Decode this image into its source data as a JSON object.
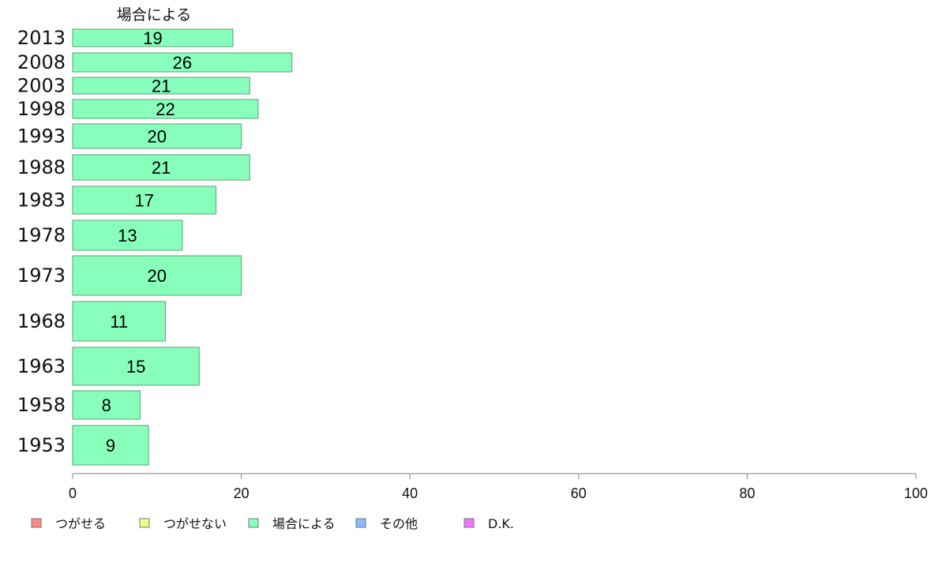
{
  "chart_data": {
    "type": "bar",
    "orientation": "horizontal",
    "categories": [
      "2013",
      "2008",
      "2003",
      "1998",
      "1993",
      "1988",
      "1983",
      "1978",
      "1973",
      "1968",
      "1963",
      "1958",
      "1953"
    ],
    "series": [
      {
        "name": "場合による",
        "color": "#88ffbb",
        "values": [
          19,
          26,
          21,
          22,
          20,
          21,
          17,
          13,
          20,
          11,
          15,
          8,
          9
        ],
        "data_labels": [
          "19",
          "26",
          "21",
          "22",
          "20",
          "21",
          "17",
          "13",
          "20",
          "11",
          "15",
          "8",
          "9"
        ]
      }
    ],
    "xlim": [
      0,
      100
    ],
    "x_ticks": [
      "0",
      "20",
      "40",
      "60",
      "80",
      "100"
    ],
    "grid": false,
    "legend_position": "bottom-left",
    "legend": [
      {
        "label": "つがせる",
        "color": "#ff8888"
      },
      {
        "label": "つがせない",
        "color": "#eeff88"
      },
      {
        "label": "場合による",
        "color": "#88ffbb"
      },
      {
        "label": "その他",
        "color": "#88bbff"
      },
      {
        "label": "D.K.",
        "color": "#ee77ff"
      }
    ]
  }
}
